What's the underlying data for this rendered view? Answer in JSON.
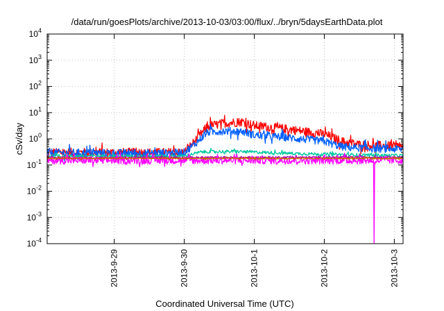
{
  "chart_data": {
    "type": "line",
    "title": "/data/run/goesPlots/archive/2013-10-03/03:00/flux/../bryn/5daysEarthData.plot",
    "xlabel": "Coordinated Universal Time (UTC)",
    "ylabel": "cSv/day",
    "yscale": "log",
    "ylim": [
      0.0001,
      10000
    ],
    "y_ticks": [
      {
        "base": "10",
        "exp": "-4",
        "value": 0.0001
      },
      {
        "base": "10",
        "exp": "-3",
        "value": 0.001
      },
      {
        "base": "10",
        "exp": "-2",
        "value": 0.01
      },
      {
        "base": "10",
        "exp": "-1",
        "value": 0.1
      },
      {
        "base": "10",
        "exp": "0",
        "value": 1
      },
      {
        "base": "10",
        "exp": "1",
        "value": 10
      },
      {
        "base": "10",
        "exp": "2",
        "value": 100
      },
      {
        "base": "10",
        "exp": "3",
        "value": 1000
      },
      {
        "base": "10",
        "exp": "4",
        "value": 10000
      }
    ],
    "xlim": [
      "2013-09-28 01:00",
      "2013-10-03 03:00"
    ],
    "x_ticks": [
      {
        "label": "2013-9-29",
        "value": "2013-09-29"
      },
      {
        "label": "2013-9-30",
        "value": "2013-09-30"
      },
      {
        "label": "2013-10-1",
        "value": "2013-10-01"
      },
      {
        "label": "2013-10-2",
        "value": "2013-10-02"
      },
      {
        "label": "2013-10-3",
        "value": "2013-10-03"
      }
    ],
    "grid": true,
    "legend": "none",
    "series": [
      {
        "color": "#ff0000",
        "noise": 0.35,
        "points": [
          [
            "2013-09-28 01:00",
            0.3
          ],
          [
            "2013-09-29 12:00",
            0.3
          ],
          [
            "2013-09-30 00:00",
            0.3
          ],
          [
            "2013-09-30 04:00",
            0.9
          ],
          [
            "2013-09-30 08:00",
            3.0
          ],
          [
            "2013-09-30 14:00",
            4.0
          ],
          [
            "2013-09-30 20:00",
            4.5
          ],
          [
            "2013-10-01 00:00",
            3.2
          ],
          [
            "2013-10-01 12:00",
            2.3
          ],
          [
            "2013-10-02 00:00",
            1.5
          ],
          [
            "2013-10-02 06:00",
            0.8
          ],
          [
            "2013-10-02 12:00",
            0.6
          ],
          [
            "2013-10-03 03:00",
            0.5
          ]
        ]
      },
      {
        "color": "#0060ff",
        "noise": 0.3,
        "points": [
          [
            "2013-09-28 01:00",
            0.3
          ],
          [
            "2013-09-29 12:00",
            0.28
          ],
          [
            "2013-09-30 00:00",
            0.3
          ],
          [
            "2013-09-30 04:00",
            0.7
          ],
          [
            "2013-09-30 08:00",
            1.8
          ],
          [
            "2013-09-30 14:00",
            2.0
          ],
          [
            "2013-09-30 20:00",
            1.9
          ],
          [
            "2013-10-01 00:00",
            1.4
          ],
          [
            "2013-10-01 12:00",
            1.1
          ],
          [
            "2013-10-02 00:00",
            0.8
          ],
          [
            "2013-10-02 06:00",
            0.5
          ],
          [
            "2013-10-02 12:00",
            0.45
          ],
          [
            "2013-10-03 03:00",
            0.4
          ]
        ]
      },
      {
        "color": "#00c8a0",
        "noise": 0.12,
        "points": [
          [
            "2013-09-28 01:00",
            0.22
          ],
          [
            "2013-09-30 00:00",
            0.22
          ],
          [
            "2013-09-30 06:00",
            0.32
          ],
          [
            "2013-09-30 18:00",
            0.33
          ],
          [
            "2013-10-01 12:00",
            0.28
          ],
          [
            "2013-10-02 06:00",
            0.25
          ],
          [
            "2013-10-03 03:00",
            0.23
          ]
        ]
      },
      {
        "color": "#b000b0",
        "noise": 0.08,
        "points": [
          [
            "2013-09-28 01:00",
            0.19
          ],
          [
            "2013-10-03 03:00",
            0.2
          ]
        ]
      },
      {
        "color": "#ff00ff",
        "noise": 0.28,
        "points": [
          [
            "2013-09-28 01:00",
            0.15
          ],
          [
            "2013-10-03 03:00",
            0.15
          ]
        ],
        "dip": {
          "x": "2013-10-02 17:00",
          "y": 0.0001
        }
      },
      {
        "color": "#c86400",
        "noise": 0.06,
        "points": [
          [
            "2013-09-28 01:00",
            0.18
          ],
          [
            "2013-10-03 03:00",
            0.18
          ]
        ]
      }
    ]
  }
}
